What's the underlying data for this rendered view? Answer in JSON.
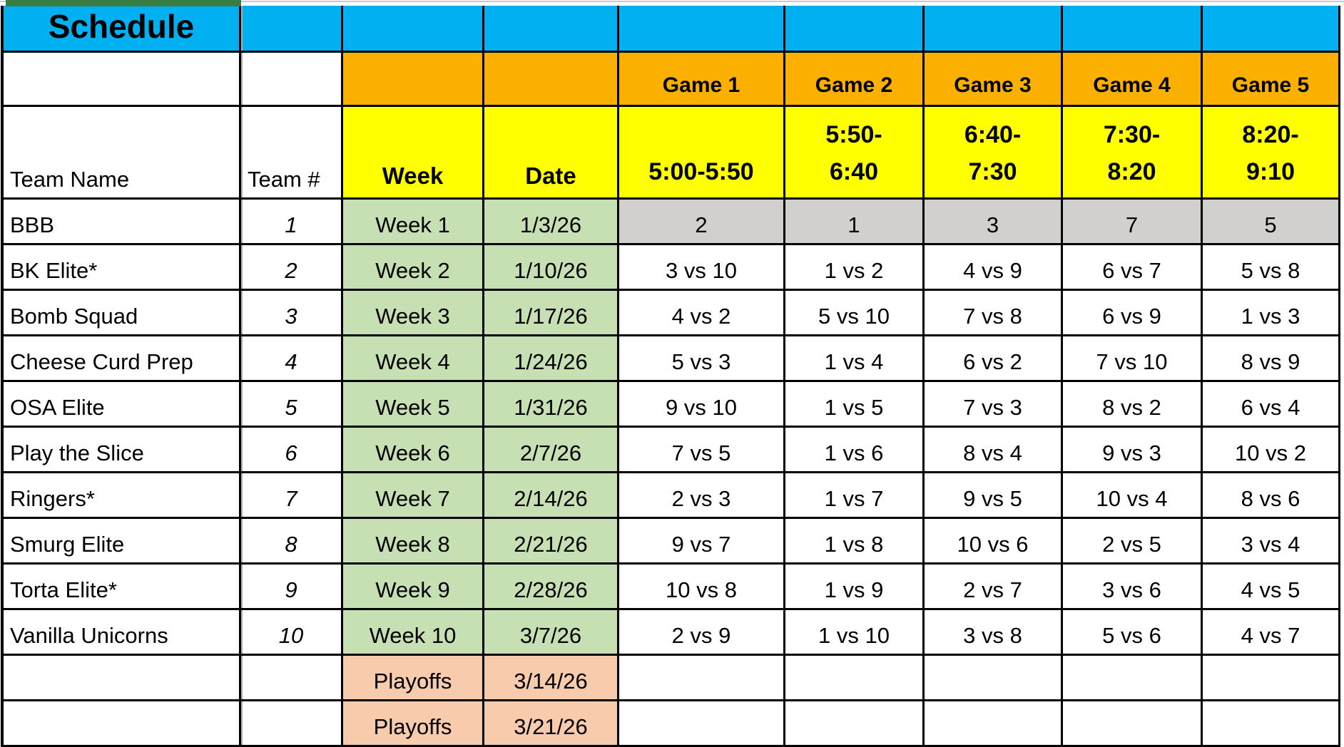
{
  "sheet": {
    "title": "Schedule",
    "columns": {
      "team_name_label": "Team Name",
      "team_number_label": "Team #",
      "week_label": "Week",
      "date_label": "Date",
      "game_labels": [
        "Game 1",
        "Game 2",
        "Game 3",
        "Game 4",
        "Game 5"
      ],
      "time_slots": [
        "5:00-5:50",
        "5:50-6:40",
        "6:40-7:30",
        "7:30-8:20",
        "8:20-9:10"
      ]
    },
    "teams": [
      {
        "name": "BBB",
        "number": "1"
      },
      {
        "name": "BK Elite*",
        "number": "2"
      },
      {
        "name": "Bomb Squad",
        "number": "3"
      },
      {
        "name": "Cheese Curd Prep",
        "number": "4"
      },
      {
        "name": "OSA Elite",
        "number": "5"
      },
      {
        "name": "Play the Slice",
        "number": "6"
      },
      {
        "name": "Ringers*",
        "number": "7"
      },
      {
        "name": "Smurg Elite",
        "number": "8"
      },
      {
        "name": "Torta Elite*",
        "number": "9"
      },
      {
        "name": "Vanilla Unicorns",
        "number": "10"
      }
    ],
    "rows": [
      {
        "week": "Week 1",
        "date": "1/3/26",
        "games": [
          "2",
          "1",
          "3",
          "7",
          "5"
        ],
        "phase": "regular",
        "highlight": true
      },
      {
        "week": "Week 2",
        "date": "1/10/26",
        "games": [
          "3 vs 10",
          "1 vs 2",
          "4 vs 9",
          "6 vs 7",
          "5 vs 8"
        ],
        "phase": "regular"
      },
      {
        "week": "Week 3",
        "date": "1/17/26",
        "games": [
          "4 vs 2",
          "5 vs 10",
          "7 vs 8",
          "6 vs 9",
          "1 vs 3"
        ],
        "phase": "regular"
      },
      {
        "week": "Week 4",
        "date": "1/24/26",
        "games": [
          "5 vs 3",
          "1 vs 4",
          "6 vs 2",
          "7 vs 10",
          "8 vs 9"
        ],
        "phase": "regular"
      },
      {
        "week": "Week 5",
        "date": "1/31/26",
        "games": [
          "9 vs 10",
          "1 vs 5",
          "7 vs 3",
          "8 vs 2",
          "6 vs 4"
        ],
        "phase": "regular"
      },
      {
        "week": "Week 6",
        "date": "2/7/26",
        "games": [
          "7 vs 5",
          "1 vs 6",
          "8 vs 4",
          "9 vs 3",
          "10 vs 2"
        ],
        "phase": "regular"
      },
      {
        "week": "Week 7",
        "date": "2/14/26",
        "games": [
          "2 vs 3",
          "1 vs 7",
          "9 vs 5",
          "10 vs 4",
          "8 vs 6"
        ],
        "phase": "regular"
      },
      {
        "week": "Week 8",
        "date": "2/21/26",
        "games": [
          "9 vs 7",
          "1 vs 8",
          "10 vs 6",
          "2 vs 5",
          "3 vs 4"
        ],
        "phase": "regular"
      },
      {
        "week": "Week 9",
        "date": "2/28/26",
        "games": [
          "10 vs 8",
          "1 vs 9",
          "2 vs 7",
          "3 vs 6",
          "4 vs 5"
        ],
        "phase": "regular"
      },
      {
        "week": "Week 10",
        "date": "3/7/26",
        "games": [
          "2 vs 9",
          "1 vs 10",
          "3 vs 8",
          "5 vs 6",
          "4 vs 7"
        ],
        "phase": "regular"
      },
      {
        "week": "Playoffs",
        "date": "3/14/26",
        "games": [
          "",
          "",
          "",
          "",
          ""
        ],
        "phase": "playoffs"
      },
      {
        "week": "Playoffs",
        "date": "3/21/26",
        "games": [
          "",
          "",
          "",
          "",
          ""
        ],
        "phase": "playoffs"
      }
    ],
    "colors": {
      "title_fill": "#00B0F0",
      "game_header_fill": "#FBB000",
      "time_header_fill": "#FFFF00",
      "week_fill": "#C6E0B4",
      "playoffs_fill": "#F8CBAD",
      "week1_games_fill": "#D2CFCF",
      "tab_accent": "#3A7D44"
    }
  }
}
